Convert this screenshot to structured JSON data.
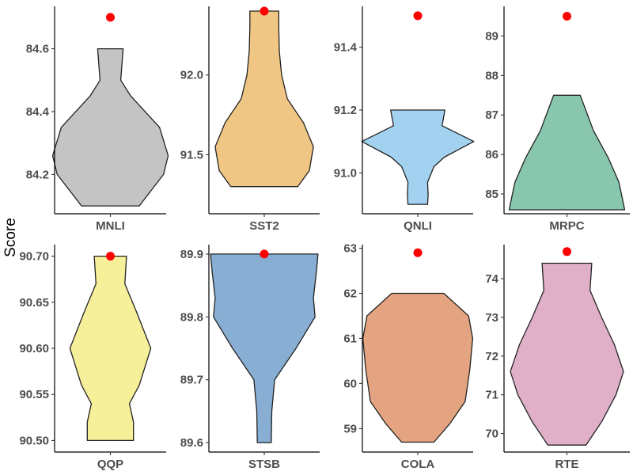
{
  "ylabel": "Score",
  "chart_data": [
    {
      "type": "violin",
      "category": "MNLI",
      "fill": "#c4c4c4",
      "ylim": [
        84.075,
        84.735
      ],
      "yticks": [
        "84.2",
        "84.4",
        "84.6"
      ],
      "ytick_values": [
        84.2,
        84.4,
        84.6
      ],
      "range": [
        84.1,
        84.6
      ],
      "marker": 84.7,
      "profile": [
        [
          84.1,
          0.5
        ],
        [
          84.2,
          0.92
        ],
        [
          84.26,
          1.0
        ],
        [
          84.35,
          0.85
        ],
        [
          84.45,
          0.35
        ],
        [
          84.5,
          0.18
        ],
        [
          84.6,
          0.22
        ]
      ]
    },
    {
      "type": "violin",
      "category": "SST2",
      "fill": "#f0c684",
      "ylim": [
        91.13,
        92.43
      ],
      "yticks": [
        "91.5",
        "92.0"
      ],
      "ytick_values": [
        91.5,
        92.0
      ],
      "range": [
        91.3,
        92.4
      ],
      "marker": 92.4,
      "profile": [
        [
          91.3,
          0.58
        ],
        [
          91.4,
          0.78
        ],
        [
          91.55,
          0.85
        ],
        [
          91.7,
          0.68
        ],
        [
          91.85,
          0.4
        ],
        [
          92.0,
          0.3
        ],
        [
          92.15,
          0.26
        ],
        [
          92.3,
          0.25
        ],
        [
          92.4,
          0.25
        ]
      ]
    },
    {
      "type": "violin",
      "category": "QNLI",
      "fill": "#a3d2f1",
      "ylim": [
        90.87,
        91.53
      ],
      "yticks": [
        "91.0",
        "91.2",
        "91.4"
      ],
      "ytick_values": [
        91.0,
        91.2,
        91.4
      ],
      "range": [
        90.9,
        91.2
      ],
      "marker": 91.5,
      "profile": [
        [
          90.9,
          0.17
        ],
        [
          90.93,
          0.18
        ],
        [
          90.97,
          0.17
        ],
        [
          91.02,
          0.28
        ],
        [
          91.05,
          0.46
        ],
        [
          91.1,
          0.97
        ],
        [
          91.15,
          0.42
        ],
        [
          91.2,
          0.47
        ]
      ]
    },
    {
      "type": "violin",
      "category": "MRPC",
      "fill": "#88c6ae",
      "ylim": [
        84.5,
        89.75
      ],
      "yticks": [
        "85",
        "86",
        "87",
        "88",
        "89"
      ],
      "ytick_values": [
        85,
        86,
        87,
        88,
        89
      ],
      "range": [
        84.6,
        87.5
      ],
      "marker": 89.5,
      "profile": [
        [
          84.6,
          1.0
        ],
        [
          84.95,
          0.95
        ],
        [
          85.3,
          0.9
        ],
        [
          85.9,
          0.72
        ],
        [
          86.6,
          0.46
        ],
        [
          87.5,
          0.23
        ]
      ]
    },
    {
      "type": "violin",
      "category": "QQP",
      "fill": "#f7f09a",
      "ylim": [
        90.4875,
        90.7125
      ],
      "yticks": [
        "90.50",
        "90.55",
        "90.60",
        "90.65",
        "90.70"
      ],
      "ytick_values": [
        90.5,
        90.55,
        90.6,
        90.65,
        90.7
      ],
      "range": [
        90.5,
        90.7
      ],
      "marker": 90.7,
      "profile": [
        [
          90.5,
          0.4
        ],
        [
          90.52,
          0.4
        ],
        [
          90.54,
          0.33
        ],
        [
          90.56,
          0.5
        ],
        [
          90.6,
          0.7
        ],
        [
          90.64,
          0.45
        ],
        [
          90.67,
          0.25
        ],
        [
          90.7,
          0.28
        ]
      ]
    },
    {
      "type": "violin",
      "category": "STSB",
      "fill": "#88afd3",
      "ylim": [
        89.585,
        89.915
      ],
      "yticks": [
        "89.6",
        "89.7",
        "89.8",
        "89.9"
      ],
      "ytick_values": [
        89.6,
        89.7,
        89.8,
        89.9
      ],
      "range": [
        89.6,
        89.9
      ],
      "marker": 89.9,
      "profile": [
        [
          89.6,
          0.12
        ],
        [
          89.65,
          0.13
        ],
        [
          89.7,
          0.18
        ],
        [
          89.75,
          0.55
        ],
        [
          89.8,
          0.88
        ],
        [
          89.83,
          0.85
        ],
        [
          89.87,
          0.9
        ],
        [
          89.9,
          0.93
        ]
      ]
    },
    {
      "type": "violin",
      "category": "COLA",
      "fill": "#e4a481",
      "ylim": [
        58.48,
        63.08
      ],
      "yticks": [
        "59",
        "60",
        "61",
        "62",
        "63"
      ],
      "ytick_values": [
        59,
        60,
        61,
        62,
        63
      ],
      "range": [
        58.7,
        62.0
      ],
      "marker": 62.9,
      "profile": [
        [
          58.7,
          0.28
        ],
        [
          59.1,
          0.55
        ],
        [
          59.6,
          0.82
        ],
        [
          60.3,
          0.9
        ],
        [
          61.0,
          0.95
        ],
        [
          61.5,
          0.88
        ],
        [
          62.0,
          0.45
        ]
      ]
    },
    {
      "type": "violin",
      "category": "RTE",
      "fill": "#e0b0c9",
      "ylim": [
        69.52,
        74.88
      ],
      "yticks": [
        "70",
        "71",
        "72",
        "73",
        "74"
      ],
      "ytick_values": [
        70,
        71,
        72,
        73,
        74
      ],
      "range": [
        69.7,
        74.4
      ],
      "marker": 74.7,
      "profile": [
        [
          69.7,
          0.33
        ],
        [
          70.3,
          0.6
        ],
        [
          71.0,
          0.85
        ],
        [
          71.6,
          0.98
        ],
        [
          72.3,
          0.82
        ],
        [
          73.0,
          0.6
        ],
        [
          73.7,
          0.4
        ],
        [
          74.4,
          0.43
        ]
      ]
    }
  ]
}
